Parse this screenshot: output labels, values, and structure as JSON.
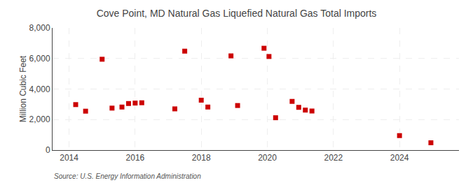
{
  "chart_data": {
    "type": "scatter",
    "title": "Cove Point, MD Natural Gas Liquefied Natural Gas Total Imports",
    "ylabel": "Million Cubic Feet",
    "annotations": [
      "Source: U.S. Energy Information Administration"
    ],
    "x": [
      2014.2,
      2014.5,
      2015.0,
      2015.3,
      2015.6,
      2015.8,
      2016.0,
      2016.2,
      2017.2,
      2017.5,
      2018.0,
      2018.2,
      2018.9,
      2019.1,
      2019.9,
      2020.05,
      2020.25,
      2020.75,
      2020.95,
      2021.15,
      2021.35,
      2024.0,
      2024.95
    ],
    "values": [
      2980,
      2550,
      5950,
      2750,
      2820,
      3050,
      3080,
      3100,
      2700,
      6480,
      3270,
      2820,
      6170,
      2920,
      6670,
      6130,
      2120,
      3190,
      2800,
      2620,
      2560,
      950,
      480
    ],
    "color": "#cc0000",
    "marker": "square",
    "xlim": [
      2013.5,
      2025.8
    ],
    "xticks": [
      2014,
      2016,
      2018,
      2020,
      2022,
      2024
    ],
    "ylim": [
      0,
      8000
    ],
    "yticks": [
      0,
      {
        "value": 2000,
        "label": "2,000"
      },
      {
        "value": 4000,
        "label": "4,000"
      },
      {
        "value": 6000,
        "label": "6,000"
      },
      {
        "value": 8000,
        "label": "8,000"
      }
    ],
    "grid": true
  }
}
